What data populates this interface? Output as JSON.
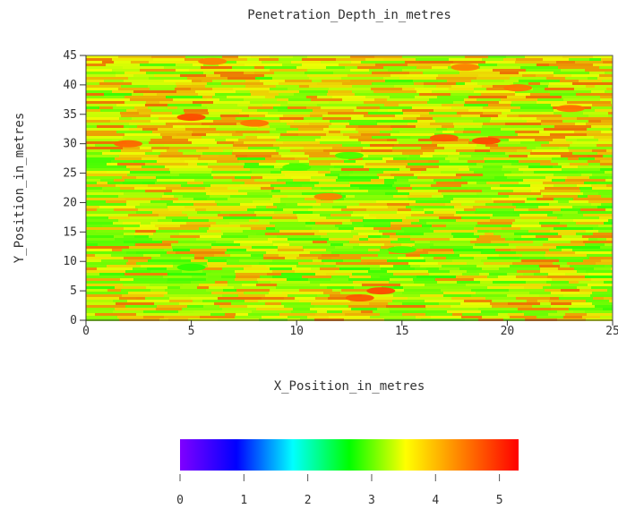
{
  "chart_data": {
    "type": "heatmap",
    "title": "Penetration_Depth_in_metres",
    "xlabel": "X_Position_in_metres",
    "ylabel": "Y_Position_in_metres",
    "xlim": [
      0,
      25
    ],
    "ylim": [
      0,
      45
    ],
    "x_ticks": [
      "0",
      "5",
      "10",
      "15",
      "20",
      "25"
    ],
    "y_ticks": [
      "0",
      "5",
      "10",
      "15",
      "20",
      "25",
      "30",
      "35",
      "40",
      "45"
    ],
    "colorbar": {
      "range": [
        0,
        5.3
      ],
      "ticks": [
        "0",
        "1",
        "2",
        "3",
        "4",
        "5"
      ],
      "colormap": [
        "#8000ff",
        "#0000ff",
        "#00ffff",
        "#00ff00",
        "#ffff00",
        "#ff7f00",
        "#ff0000"
      ]
    },
    "dominant_value_range": [
      2.8,
      4.6
    ],
    "hotspots": [
      {
        "x": 5.0,
        "y": 34.5,
        "value": 4.8
      },
      {
        "x": 19.0,
        "y": 30.5,
        "value": 4.8
      },
      {
        "x": 14.0,
        "y": 5.0,
        "value": 4.8
      },
      {
        "x": 13.0,
        "y": 3.8,
        "value": 4.7
      },
      {
        "x": 17.0,
        "y": 31.0,
        "value": 4.7
      },
      {
        "x": 2.0,
        "y": 30.0,
        "value": 4.6
      },
      {
        "x": 8.0,
        "y": 33.5,
        "value": 4.5
      },
      {
        "x": 20.5,
        "y": 39.5,
        "value": 4.5
      },
      {
        "x": 23.0,
        "y": 36.0,
        "value": 4.5
      },
      {
        "x": 18.0,
        "y": 43.0,
        "value": 4.4
      },
      {
        "x": 6.0,
        "y": 44.0,
        "value": 4.4
      },
      {
        "x": 11.5,
        "y": 21.0,
        "value": 4.4
      }
    ],
    "lowspots": [
      {
        "x": 10.0,
        "y": 26.0,
        "value": 2.9
      },
      {
        "x": 15.0,
        "y": 12.0,
        "value": 2.9
      },
      {
        "x": 5.0,
        "y": 9.0,
        "value": 2.8
      },
      {
        "x": 12.5,
        "y": 28.0,
        "value": 2.9
      }
    ]
  }
}
